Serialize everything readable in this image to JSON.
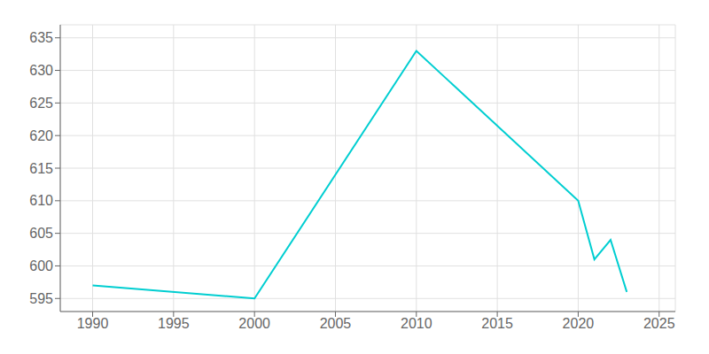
{
  "chart_data": {
    "type": "line",
    "x": [
      1990,
      2000,
      2010,
      2020,
      2021,
      2022,
      2023
    ],
    "values": [
      597,
      595,
      633,
      610,
      601,
      604,
      596
    ],
    "color": "#00CED1",
    "xlim": [
      1988,
      2026
    ],
    "ylim": [
      593,
      637
    ],
    "xticks": [
      1990,
      1995,
      2000,
      2005,
      2010,
      2015,
      2020,
      2025
    ],
    "yticks": [
      595,
      600,
      605,
      610,
      615,
      620,
      625,
      630,
      635
    ],
    "grid": true
  }
}
